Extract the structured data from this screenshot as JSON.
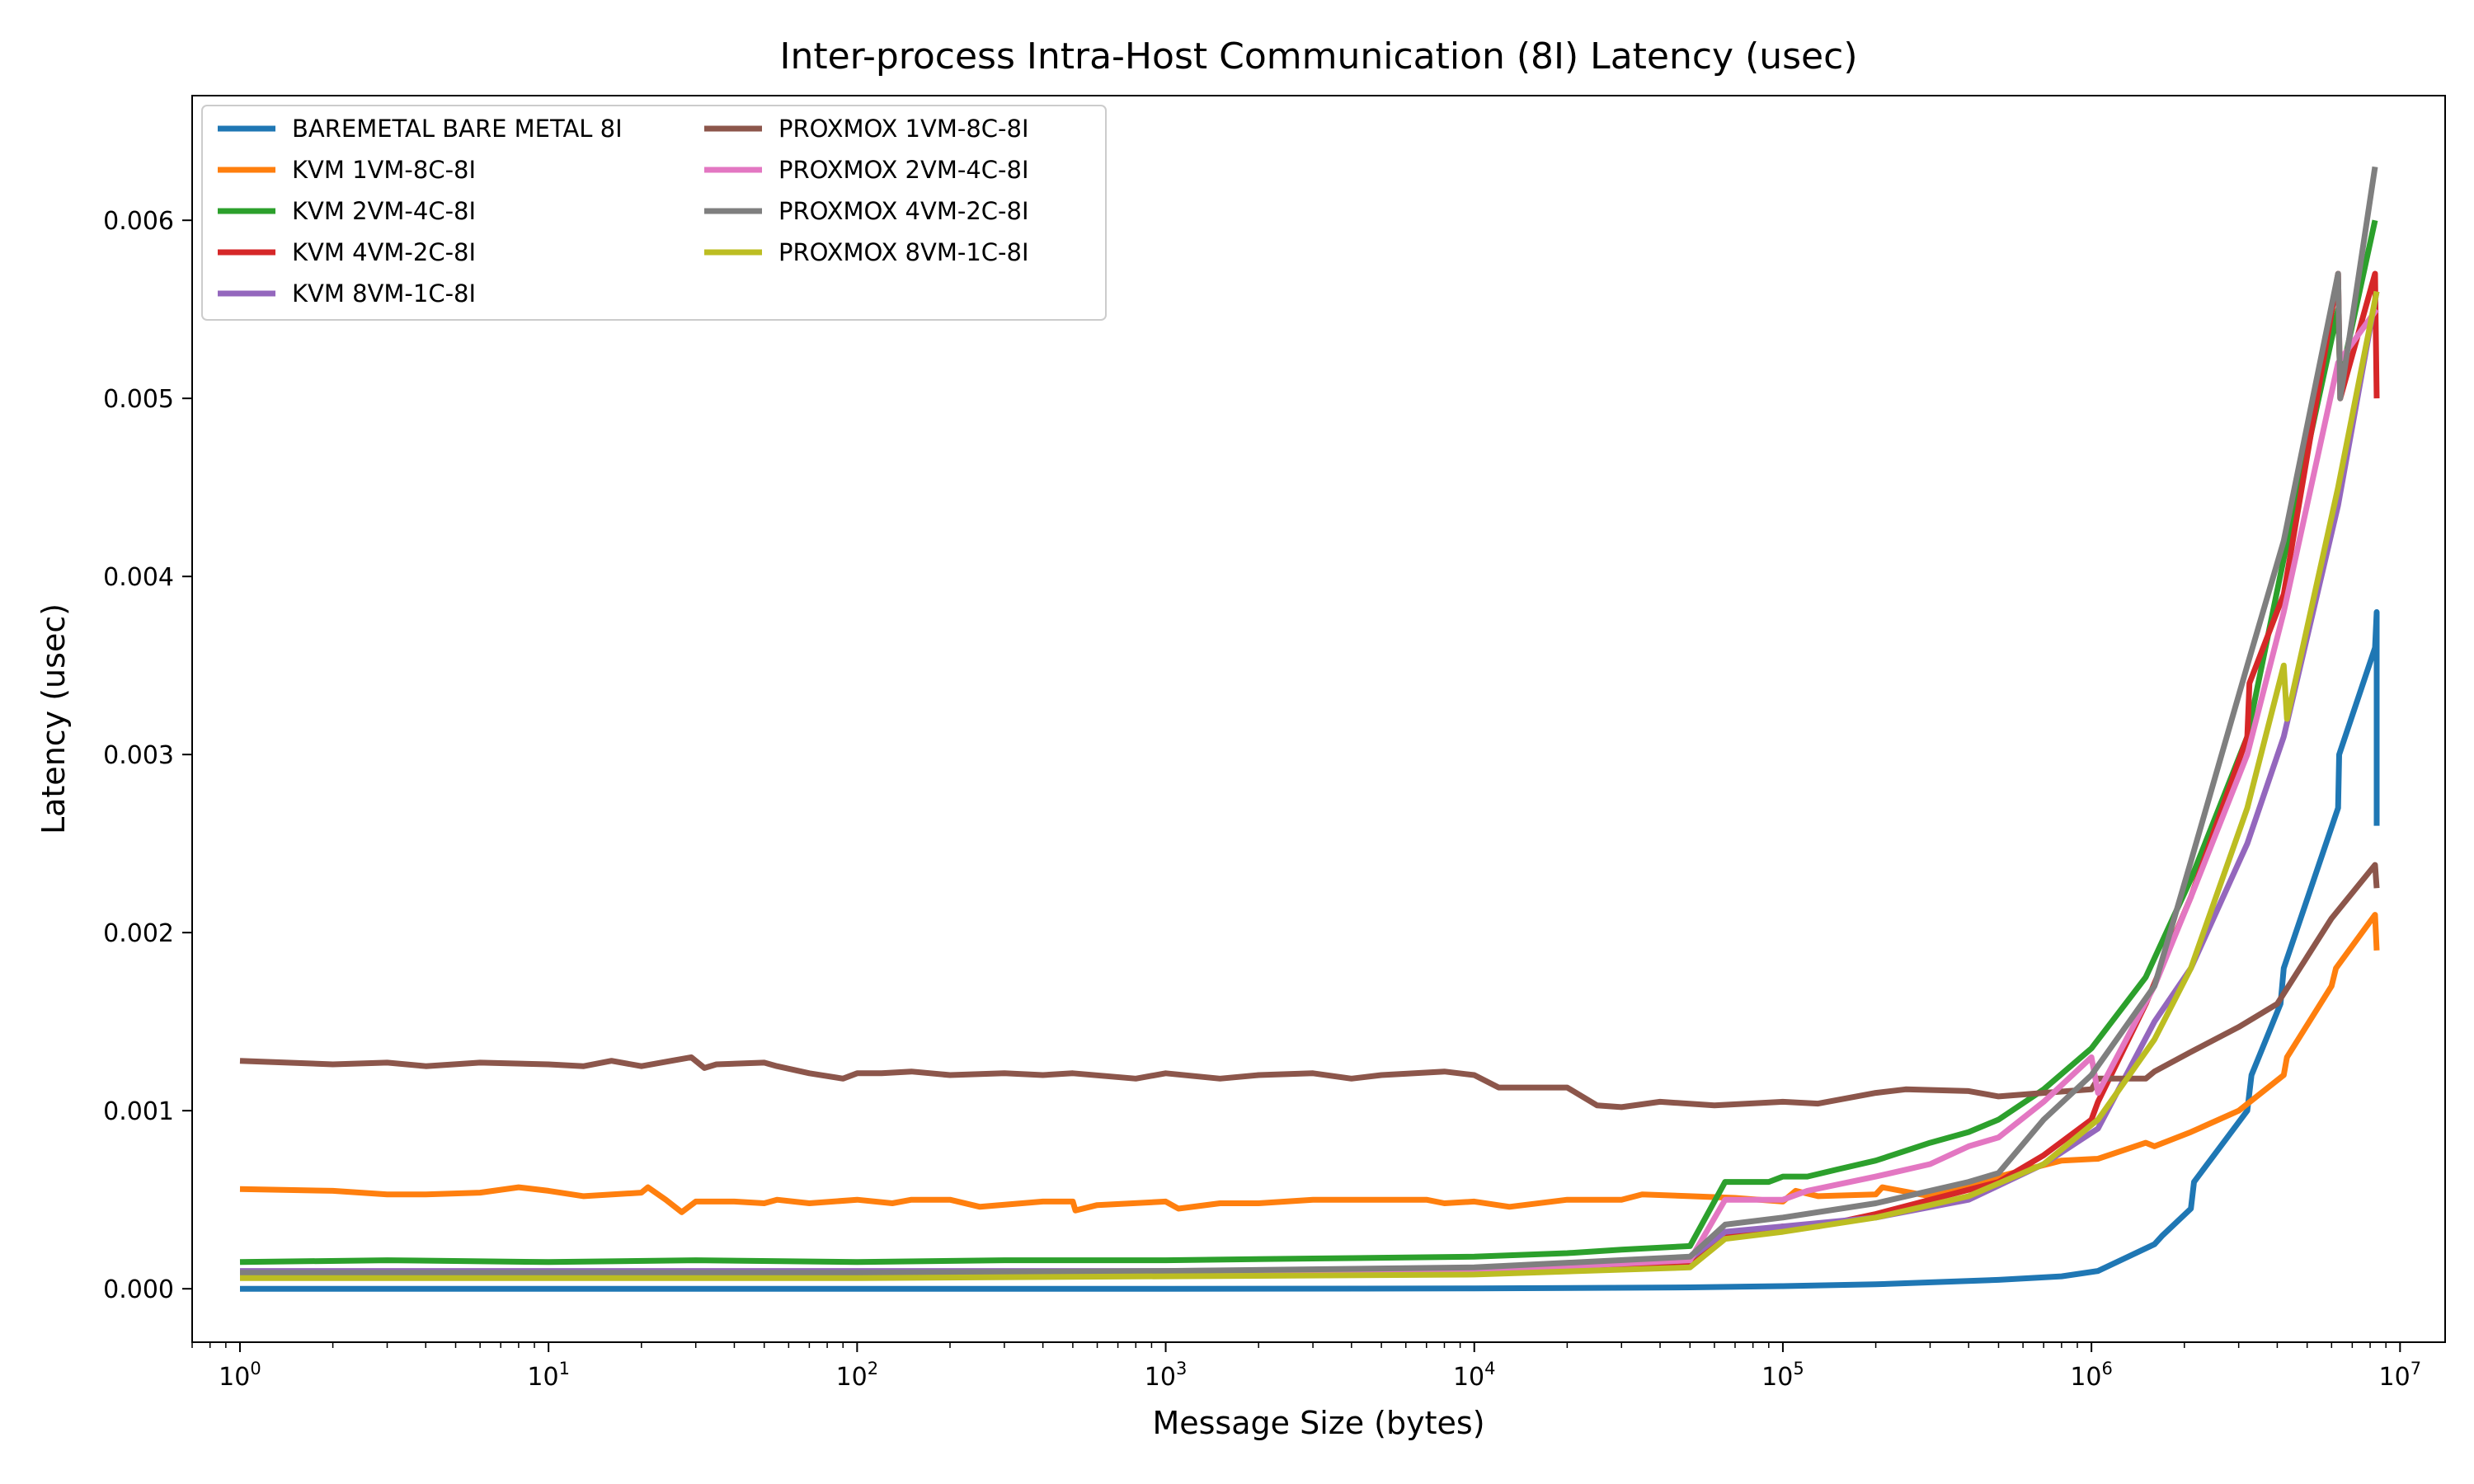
{
  "chart_data": {
    "type": "line",
    "title": "Inter-process Intra-Host Communication (8I) Latency (usec)",
    "xlabel": "Message Size (bytes)",
    "ylabel": "Latency (usec)",
    "xscale": "log",
    "xlim": [
      0.7,
      14000000
    ],
    "ylim": [
      -0.0003,
      0.0067
    ],
    "xticks": [
      {
        "base": "10",
        "exp": "0",
        "value": 1
      },
      {
        "base": "10",
        "exp": "1",
        "value": 10
      },
      {
        "base": "10",
        "exp": "2",
        "value": 100
      },
      {
        "base": "10",
        "exp": "3",
        "value": 1000
      },
      {
        "base": "10",
        "exp": "4",
        "value": 10000
      },
      {
        "base": "10",
        "exp": "5",
        "value": 100000
      },
      {
        "base": "10",
        "exp": "6",
        "value": 1000000
      },
      {
        "base": "10",
        "exp": "7",
        "value": 10000000
      }
    ],
    "yticks": [
      {
        "label": "0.000",
        "value": 0.0
      },
      {
        "label": "0.001",
        "value": 0.001
      },
      {
        "label": "0.002",
        "value": 0.002
      },
      {
        "label": "0.003",
        "value": 0.003
      },
      {
        "label": "0.004",
        "value": 0.004
      },
      {
        "label": "0.005",
        "value": 0.005
      },
      {
        "label": "0.006",
        "value": 0.006
      }
    ],
    "grid": false,
    "legend_position": "upper-left",
    "legend_columns": 2,
    "series": [
      {
        "name": "BAREMETAL BARE METAL 8I",
        "color": "#1f77b4",
        "points": [
          [
            1,
            0.0
          ],
          [
            100,
            0.0
          ],
          [
            1000,
            0.0
          ],
          [
            10000,
            2e-06
          ],
          [
            50000,
            8e-06
          ],
          [
            100000,
            1.5e-05
          ],
          [
            200000,
            2.5e-05
          ],
          [
            500000,
            5e-05
          ],
          [
            800000,
            7e-05
          ],
          [
            1050000,
            0.0001
          ],
          [
            1600000,
            0.00025
          ],
          [
            1700000,
            0.0003
          ],
          [
            2100000,
            0.00045
          ],
          [
            2150000,
            0.0006
          ],
          [
            3200000,
            0.001
          ],
          [
            3300000,
            0.0012
          ],
          [
            4100000,
            0.0016
          ],
          [
            4200000,
            0.0018
          ],
          [
            6300000,
            0.0027
          ],
          [
            6350000,
            0.003
          ],
          [
            8300000,
            0.0036
          ],
          [
            8400000,
            0.0038
          ],
          [
            8400000,
            0.0026
          ]
        ]
      },
      {
        "name": "KVM 1VM-8C-8I",
        "color": "#ff7f0e",
        "points": [
          [
            1,
            0.00056
          ],
          [
            2,
            0.00055
          ],
          [
            3,
            0.00053
          ],
          [
            4,
            0.00053
          ],
          [
            6,
            0.00054
          ],
          [
            8,
            0.00057
          ],
          [
            10,
            0.00055
          ],
          [
            13,
            0.00052
          ],
          [
            20,
            0.00054
          ],
          [
            21,
            0.00057
          ],
          [
            24,
            0.0005
          ],
          [
            27,
            0.00043
          ],
          [
            30,
            0.00049
          ],
          [
            40,
            0.00049
          ],
          [
            50,
            0.00048
          ],
          [
            55,
            0.0005
          ],
          [
            70,
            0.00048
          ],
          [
            100,
            0.0005
          ],
          [
            130,
            0.00048
          ],
          [
            150,
            0.0005
          ],
          [
            200,
            0.0005
          ],
          [
            250,
            0.00046
          ],
          [
            400,
            0.00049
          ],
          [
            500,
            0.00049
          ],
          [
            510,
            0.00044
          ],
          [
            600,
            0.00047
          ],
          [
            1000,
            0.00049
          ],
          [
            1100,
            0.00045
          ],
          [
            1500,
            0.00048
          ],
          [
            2000,
            0.00048
          ],
          [
            3000,
            0.0005
          ],
          [
            5000,
            0.0005
          ],
          [
            7000,
            0.0005
          ],
          [
            8000,
            0.00048
          ],
          [
            10000,
            0.00049
          ],
          [
            13000,
            0.00046
          ],
          [
            20000,
            0.0005
          ],
          [
            30000,
            0.0005
          ],
          [
            35000,
            0.00053
          ],
          [
            50000,
            0.00052
          ],
          [
            70000,
            0.00051
          ],
          [
            100000,
            0.00049
          ],
          [
            110000,
            0.00055
          ],
          [
            130000,
            0.00052
          ],
          [
            200000,
            0.00053
          ],
          [
            210000,
            0.00057
          ],
          [
            300000,
            0.00052
          ],
          [
            500000,
            0.00063
          ],
          [
            800000,
            0.00072
          ],
          [
            1050000,
            0.00073
          ],
          [
            1500000,
            0.00082
          ],
          [
            1600000,
            0.0008
          ],
          [
            2100000,
            0.00088
          ],
          [
            3000000,
            0.001
          ],
          [
            4200000,
            0.0012
          ],
          [
            4300000,
            0.0013
          ],
          [
            6000000,
            0.0017
          ],
          [
            6200000,
            0.0018
          ],
          [
            8300000,
            0.0021
          ],
          [
            8400000,
            0.0019
          ]
        ]
      },
      {
        "name": "KVM 2VM-4C-8I",
        "color": "#2ca02c",
        "points": [
          [
            1,
            0.00015
          ],
          [
            3,
            0.00016
          ],
          [
            10,
            0.00015
          ],
          [
            30,
            0.00016
          ],
          [
            100,
            0.00015
          ],
          [
            300,
            0.00016
          ],
          [
            1000,
            0.00016
          ],
          [
            3000,
            0.00017
          ],
          [
            10000,
            0.00018
          ],
          [
            20000,
            0.0002
          ],
          [
            30000,
            0.00022
          ],
          [
            50000,
            0.00024
          ],
          [
            65000,
            0.0006
          ],
          [
            90000,
            0.0006
          ],
          [
            100000,
            0.00063
          ],
          [
            120000,
            0.00063
          ],
          [
            150000,
            0.00067
          ],
          [
            200000,
            0.00072
          ],
          [
            300000,
            0.00082
          ],
          [
            400000,
            0.00088
          ],
          [
            500000,
            0.00095
          ],
          [
            700000,
            0.00112
          ],
          [
            1000000,
            0.00135
          ],
          [
            1500000,
            0.00175
          ],
          [
            2100000,
            0.0023
          ],
          [
            3200000,
            0.0031
          ],
          [
            4200000,
            0.0041
          ],
          [
            6300000,
            0.0055
          ],
          [
            6400000,
            0.0051
          ],
          [
            8300000,
            0.006
          ]
        ]
      },
      {
        "name": "KVM 4VM-2C-8I",
        "color": "#d62728",
        "points": [
          [
            1,
            8e-05
          ],
          [
            10,
            8e-05
          ],
          [
            100,
            8e-05
          ],
          [
            1000,
            9e-05
          ],
          [
            10000,
            0.0001
          ],
          [
            30000,
            0.00012
          ],
          [
            50000,
            0.00015
          ],
          [
            65000,
            0.0003
          ],
          [
            100000,
            0.00035
          ],
          [
            130000,
            0.00035
          ],
          [
            200000,
            0.00042
          ],
          [
            300000,
            0.0005
          ],
          [
            500000,
            0.0006
          ],
          [
            700000,
            0.00075
          ],
          [
            1000000,
            0.00095
          ],
          [
            1050000,
            0.00105
          ],
          [
            1500000,
            0.0016
          ],
          [
            2100000,
            0.0022
          ],
          [
            3200000,
            0.0031
          ],
          [
            3250000,
            0.0034
          ],
          [
            4200000,
            0.0039
          ],
          [
            6300000,
            0.0057
          ],
          [
            6400000,
            0.005
          ],
          [
            8300000,
            0.0057
          ],
          [
            8400000,
            0.005
          ]
        ]
      },
      {
        "name": "KVM 8VM-1C-8I",
        "color": "#9467bd",
        "points": [
          [
            1,
            0.0001
          ],
          [
            10,
            0.0001
          ],
          [
            100,
            0.0001
          ],
          [
            1000,
            0.0001
          ],
          [
            10000,
            0.00011
          ],
          [
            50000,
            0.00017
          ],
          [
            65000,
            0.00032
          ],
          [
            100000,
            0.00035
          ],
          [
            200000,
            0.0004
          ],
          [
            400000,
            0.0005
          ],
          [
            700000,
            0.0007
          ],
          [
            1050000,
            0.0009
          ],
          [
            1600000,
            0.0015
          ],
          [
            2100000,
            0.0018
          ],
          [
            3200000,
            0.0025
          ],
          [
            4200000,
            0.0031
          ],
          [
            6300000,
            0.0044
          ],
          [
            8400000,
            0.0056
          ]
        ]
      },
      {
        "name": "PROXMOX 1VM-8C-8I",
        "color": "#8c564b",
        "points": [
          [
            1,
            0.00128
          ],
          [
            2,
            0.00126
          ],
          [
            3,
            0.00127
          ],
          [
            4,
            0.00125
          ],
          [
            6,
            0.00127
          ],
          [
            10,
            0.00126
          ],
          [
            13,
            0.00125
          ],
          [
            16,
            0.00128
          ],
          [
            20,
            0.00125
          ],
          [
            25,
            0.00128
          ],
          [
            29,
            0.0013
          ],
          [
            32,
            0.00124
          ],
          [
            35,
            0.00126
          ],
          [
            50,
            0.00127
          ],
          [
            55,
            0.00125
          ],
          [
            70,
            0.00121
          ],
          [
            90,
            0.00118
          ],
          [
            100,
            0.00121
          ],
          [
            120,
            0.00121
          ],
          [
            150,
            0.00122
          ],
          [
            200,
            0.0012
          ],
          [
            300,
            0.00121
          ],
          [
            400,
            0.0012
          ],
          [
            500,
            0.00121
          ],
          [
            800,
            0.00118
          ],
          [
            1000,
            0.00121
          ],
          [
            1500,
            0.00118
          ],
          [
            2000,
            0.0012
          ],
          [
            3000,
            0.00121
          ],
          [
            4000,
            0.00118
          ],
          [
            5000,
            0.0012
          ],
          [
            8000,
            0.00122
          ],
          [
            10000,
            0.0012
          ],
          [
            12000,
            0.00113
          ],
          [
            20000,
            0.00113
          ],
          [
            25000,
            0.00103
          ],
          [
            30000,
            0.00102
          ],
          [
            40000,
            0.00105
          ],
          [
            60000,
            0.00103
          ],
          [
            100000,
            0.00105
          ],
          [
            130000,
            0.00104
          ],
          [
            200000,
            0.0011
          ],
          [
            250000,
            0.00112
          ],
          [
            400000,
            0.00111
          ],
          [
            500000,
            0.00108
          ],
          [
            700000,
            0.0011
          ],
          [
            1000000,
            0.00112
          ],
          [
            1050000,
            0.00118
          ],
          [
            1500000,
            0.00118
          ],
          [
            1600000,
            0.00122
          ],
          [
            2100000,
            0.00133
          ],
          [
            3000000,
            0.00147
          ],
          [
            4000000,
            0.0016
          ],
          [
            6000000,
            0.00208
          ],
          [
            8300000,
            0.00238
          ],
          [
            8400000,
            0.00225
          ]
        ]
      },
      {
        "name": "PROXMOX 2VM-4C-8I",
        "color": "#e377c2",
        "points": [
          [
            1,
            8e-05
          ],
          [
            10,
            8e-05
          ],
          [
            100,
            8e-05
          ],
          [
            1000,
            9e-05
          ],
          [
            10000,
            0.0001
          ],
          [
            50000,
            0.00016
          ],
          [
            65000,
            0.0005
          ],
          [
            100000,
            0.0005
          ],
          [
            120000,
            0.00055
          ],
          [
            200000,
            0.00063
          ],
          [
            300000,
            0.0007
          ],
          [
            400000,
            0.0008
          ],
          [
            500000,
            0.00085
          ],
          [
            700000,
            0.00105
          ],
          [
            1000000,
            0.0013
          ],
          [
            1050000,
            0.0011
          ],
          [
            1600000,
            0.0017
          ],
          [
            2100000,
            0.0022
          ],
          [
            3200000,
            0.003
          ],
          [
            4200000,
            0.0038
          ],
          [
            6300000,
            0.0052
          ],
          [
            8400000,
            0.0055
          ]
        ]
      },
      {
        "name": "PROXMOX 4VM-2C-8I",
        "color": "#7f7f7f",
        "points": [
          [
            1,
            9e-05
          ],
          [
            10,
            9e-05
          ],
          [
            100,
            9e-05
          ],
          [
            1000,
            0.0001
          ],
          [
            10000,
            0.00012
          ],
          [
            50000,
            0.00018
          ],
          [
            65000,
            0.00036
          ],
          [
            100000,
            0.0004
          ],
          [
            200000,
            0.00048
          ],
          [
            400000,
            0.0006
          ],
          [
            500000,
            0.00065
          ],
          [
            700000,
            0.00095
          ],
          [
            1000000,
            0.0012
          ],
          [
            1600000,
            0.0017
          ],
          [
            2100000,
            0.0024
          ],
          [
            3200000,
            0.0035
          ],
          [
            4200000,
            0.0042
          ],
          [
            6300000,
            0.0057
          ],
          [
            6400000,
            0.005
          ],
          [
            8300000,
            0.0063
          ]
        ]
      },
      {
        "name": "PROXMOX 8VM-1C-8I",
        "color": "#bcbd22",
        "points": [
          [
            1,
            6e-05
          ],
          [
            10,
            6e-05
          ],
          [
            100,
            6e-05
          ],
          [
            1000,
            7e-05
          ],
          [
            10000,
            8e-05
          ],
          [
            50000,
            0.00012
          ],
          [
            65000,
            0.00028
          ],
          [
            100000,
            0.00032
          ],
          [
            200000,
            0.0004
          ],
          [
            400000,
            0.00052
          ],
          [
            700000,
            0.0007
          ],
          [
            1050000,
            0.00095
          ],
          [
            1600000,
            0.0014
          ],
          [
            2100000,
            0.0018
          ],
          [
            3200000,
            0.0027
          ],
          [
            4200000,
            0.0035
          ],
          [
            4300000,
            0.0032
          ],
          [
            6300000,
            0.0045
          ],
          [
            8400000,
            0.0056
          ]
        ]
      }
    ]
  }
}
